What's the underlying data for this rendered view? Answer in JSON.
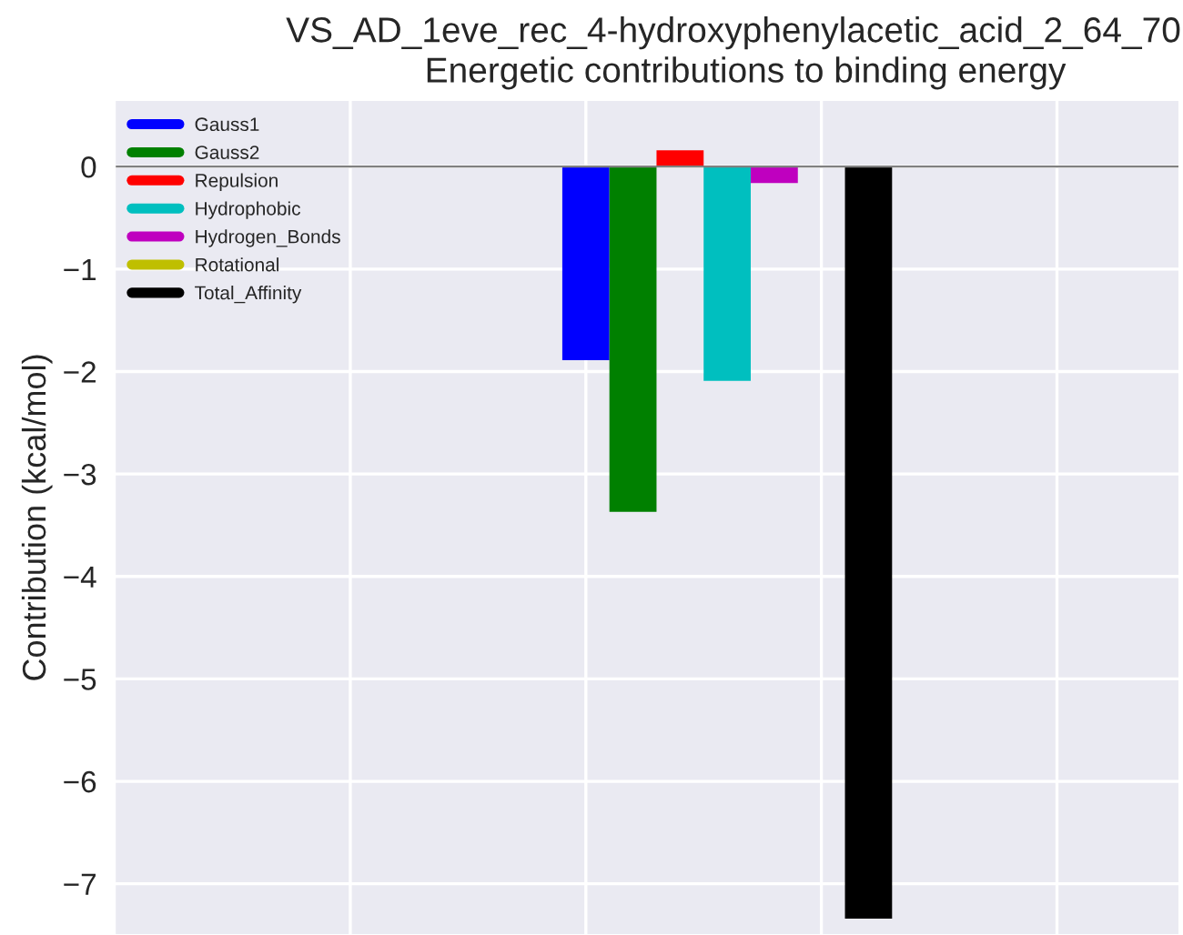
{
  "chart_data": {
    "type": "bar",
    "title": "VS_AD_1eve_rec_4-hydroxyphenylacetic_acid_2_64_70",
    "subtitle": "Energetic contributions to binding energy",
    "ylabel": "Contribution (kcal/mol)",
    "categories": [
      null
    ],
    "series": [
      {
        "name": "Gauss1",
        "color": "#0000ff",
        "values": [
          -1.89
        ]
      },
      {
        "name": "Gauss2",
        "color": "#008000",
        "values": [
          -3.37
        ]
      },
      {
        "name": "Repulsion",
        "color": "#ff0000",
        "values": [
          0.16
        ]
      },
      {
        "name": "Hydrophobic",
        "color": "#00bfbf",
        "values": [
          -2.09
        ]
      },
      {
        "name": "Hydrogen_Bonds",
        "color": "#bf00bf",
        "values": [
          -0.16
        ]
      },
      {
        "name": "Rotational",
        "color": "#bfbf00",
        "values": [
          0
        ]
      },
      {
        "name": "Total_Affinity",
        "color": "#000000",
        "values": [
          -7.34
        ]
      }
    ],
    "ylim": [
      -7.5,
      0.65
    ],
    "yticks": [
      -7,
      -6,
      -5,
      -4,
      -3,
      -2,
      -1,
      0
    ],
    "ref_lines": [
      {
        "axis": "y",
        "value": 0,
        "color": "#808080"
      }
    ],
    "grid": true,
    "legend": "top left",
    "tick_labels": "y"
  }
}
